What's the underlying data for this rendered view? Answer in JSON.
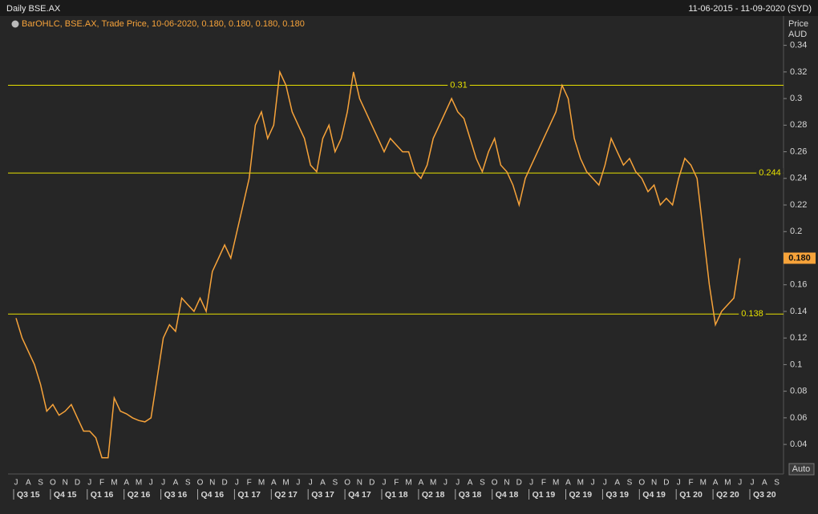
{
  "header": {
    "title": "Daily BSE.AX",
    "date_range": "11-06-2015 - 11-09-2020 (SYD)"
  },
  "chart_data": {
    "type": "line",
    "legend": "BarOHLC, BSE.AX, Trade Price, 10-06-2020, 0.180, 0.180, 0.180, 0.180",
    "y_label": "Price",
    "y_unit": "AUD",
    "color": "#f7a33a",
    "categories": [
      "J",
      null,
      "A",
      null,
      "S",
      null,
      "O",
      null,
      "N",
      null,
      "D",
      null,
      "J",
      null,
      "F",
      null,
      "M",
      null,
      "A",
      null,
      "M",
      null,
      "J",
      null,
      "J",
      null,
      "A",
      null,
      "S",
      null,
      "O",
      null,
      "N",
      null,
      "D",
      null,
      "J",
      null,
      "F",
      null,
      "M",
      null,
      "A",
      null,
      "M",
      null,
      "J",
      null,
      "J",
      null,
      "A",
      null,
      "S",
      null,
      "O",
      null,
      "N",
      null,
      "D",
      null,
      "J",
      null,
      "F",
      null,
      "M",
      null,
      "A",
      null,
      "M",
      null,
      "J",
      null,
      "J",
      null,
      "A",
      null,
      "S",
      null,
      "O",
      null,
      "N",
      null,
      "D",
      null,
      "J",
      null,
      "F",
      null,
      "M",
      null,
      "A",
      null,
      "M",
      null,
      "J",
      null,
      "J",
      null,
      "A",
      null,
      "S",
      null,
      "O",
      null,
      "N",
      null,
      "D",
      null,
      "J",
      null,
      "F",
      null,
      "M",
      null,
      "A",
      null,
      "M",
      null,
      "J",
      null,
      "J",
      null,
      "A",
      null,
      "S",
      null
    ],
    "values": [
      0.135,
      0.12,
      0.11,
      0.1,
      0.085,
      0.065,
      0.07,
      0.062,
      0.065,
      0.07,
      0.06,
      0.05,
      0.05,
      0.045,
      0.03,
      0.03,
      0.075,
      0.065,
      0.063,
      0.06,
      0.058,
      0.057,
      0.06,
      0.09,
      0.12,
      0.13,
      0.125,
      0.15,
      0.145,
      0.14,
      0.15,
      0.14,
      0.17,
      0.18,
      0.19,
      0.18,
      0.2,
      0.22,
      0.24,
      0.28,
      0.29,
      0.27,
      0.28,
      0.32,
      0.31,
      0.29,
      0.28,
      0.27,
      0.25,
      0.245,
      0.27,
      0.28,
      0.26,
      0.27,
      0.29,
      0.32,
      0.3,
      0.29,
      0.28,
      0.27,
      0.26,
      0.27,
      0.265,
      0.26,
      0.26,
      0.245,
      0.24,
      0.25,
      0.27,
      0.28,
      0.29,
      0.3,
      0.29,
      0.285,
      0.27,
      0.255,
      0.245,
      0.26,
      0.27,
      0.25,
      0.245,
      0.235,
      0.22,
      0.24,
      0.25,
      0.26,
      0.27,
      0.28,
      0.29,
      0.31,
      0.3,
      0.27,
      0.255,
      0.245,
      0.24,
      0.235,
      0.25,
      0.27,
      0.26,
      0.25,
      0.255,
      0.245,
      0.24,
      0.23,
      0.235,
      0.22,
      0.225,
      0.22,
      0.24,
      0.255,
      0.25,
      0.24,
      0.2,
      0.16,
      0.13,
      0.14,
      0.145,
      0.15,
      0.18,
      null,
      null,
      null,
      null,
      null,
      null,
      null
    ],
    "quarters": [
      "Q3 15",
      "Q4 15",
      "Q1 16",
      "Q2 16",
      "Q3 16",
      "Q4 16",
      "Q1 17",
      "Q2 17",
      "Q3 17",
      "Q4 17",
      "Q1 18",
      "Q2 18",
      "Q3 18",
      "Q4 18",
      "Q1 19",
      "Q2 19",
      "Q3 19",
      "Q4 19",
      "Q1 20",
      "Q2 20",
      "Q3 20"
    ],
    "ylim": [
      0.019,
      0.347
    ],
    "yticks": [
      0.04,
      0.06,
      0.08,
      0.1,
      0.12,
      0.14,
      0.16,
      0.2,
      0.22,
      0.24,
      0.26,
      0.28,
      0.3,
      0.32,
      0.34
    ],
    "hlines": [
      0.31,
      0.244,
      0.138
    ],
    "hline_color": "#e6e000",
    "last_value": {
      "value": 0.18,
      "label": "0.180"
    },
    "auto_button": "Auto"
  }
}
